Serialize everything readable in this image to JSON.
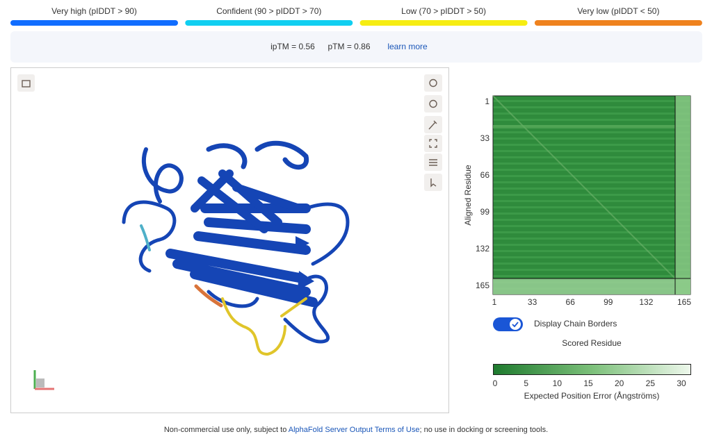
{
  "legend": [
    {
      "label": "Very high (pIDDT > 90)",
      "color": "#106dff"
    },
    {
      "label": "Confident (90 > pIDDT > 70)",
      "color": "#10cff1"
    },
    {
      "label": "Low (70 > pIDDT > 50)",
      "color": "#f6ed12"
    },
    {
      "label": "Very low (pIDDT < 50)",
      "color": "#ef821e"
    }
  ],
  "scores": {
    "iptm": "ipTM = 0.56",
    "ptm": "pTM = 0.86",
    "link": "learn more"
  },
  "pae": {
    "y_axis_label": "Aligned Residue",
    "yticks": [
      1,
      33,
      66,
      99,
      132,
      165
    ],
    "xticks": [
      1,
      33,
      66,
      99,
      132,
      165
    ],
    "toggle_label": "Display Chain Borders",
    "x_axis_label": "Scored Residue",
    "colorbar_ticks": [
      0,
      5,
      10,
      15,
      20,
      25,
      30
    ],
    "colorbar_label": "Expected Position Error (Ångströms)"
  },
  "footer": {
    "text_before": "Non-commercial use only, subject to ",
    "link": "AlphaFold Server Output Terms of Use",
    "text_after": "; no use in docking or screening tools."
  }
}
